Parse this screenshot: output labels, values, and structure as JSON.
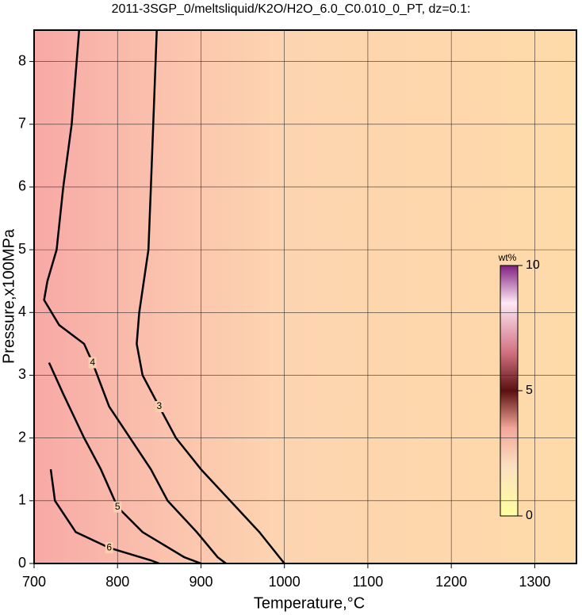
{
  "chart_data": {
    "type": "contour",
    "title": "2011-3SGP_0/meltsliquid/K2O/H2O_6.0_C0.010_0_PT, dz=0.1:",
    "x_label": "Temperature,°C",
    "y_label": "Pressure,x100MPa",
    "xlim": [
      700,
      1350
    ],
    "ylim": [
      0,
      8.5
    ],
    "xticks": [
      700,
      800,
      900,
      1000,
      1100,
      1200,
      1300
    ],
    "yticks": [
      0,
      1,
      2,
      3,
      4,
      5,
      6,
      7,
      8
    ],
    "grid": true,
    "contours": [
      {
        "level": 3,
        "x": [
          847,
          840,
          837,
          826,
          823,
          830,
          850,
          870,
          900,
          935,
          970,
          1000
        ],
        "y": [
          8.5,
          6,
          5,
          4,
          3.5,
          3,
          2.5,
          2,
          1.5,
          1,
          0.5,
          0
        ]
      },
      {
        "level": 4,
        "x": [
          754,
          745,
          735,
          727,
          716,
          712,
          730,
          760,
          770,
          790,
          815,
          840,
          860,
          895,
          920,
          930
        ],
        "y": [
          8.5,
          7,
          6,
          5,
          4.5,
          4.2,
          3.8,
          3.5,
          3.2,
          2.5,
          2,
          1.5,
          1,
          0.5,
          0.1,
          0
        ]
      },
      {
        "level": 5,
        "x": [
          718,
          735,
          760,
          780,
          800,
          830,
          880,
          900
        ],
        "y": [
          3.2,
          2.7,
          2,
          1.5,
          0.9,
          0.5,
          0.1,
          0
        ]
      },
      {
        "level": 6,
        "x": [
          720,
          725,
          750,
          790,
          840,
          850
        ],
        "y": [
          1.5,
          1,
          0.5,
          0.25,
          0.05,
          0
        ]
      }
    ],
    "colorbar": {
      "label": "wt%",
      "lim": [
        0,
        10
      ],
      "ticks": [
        0,
        5,
        10
      ]
    }
  }
}
